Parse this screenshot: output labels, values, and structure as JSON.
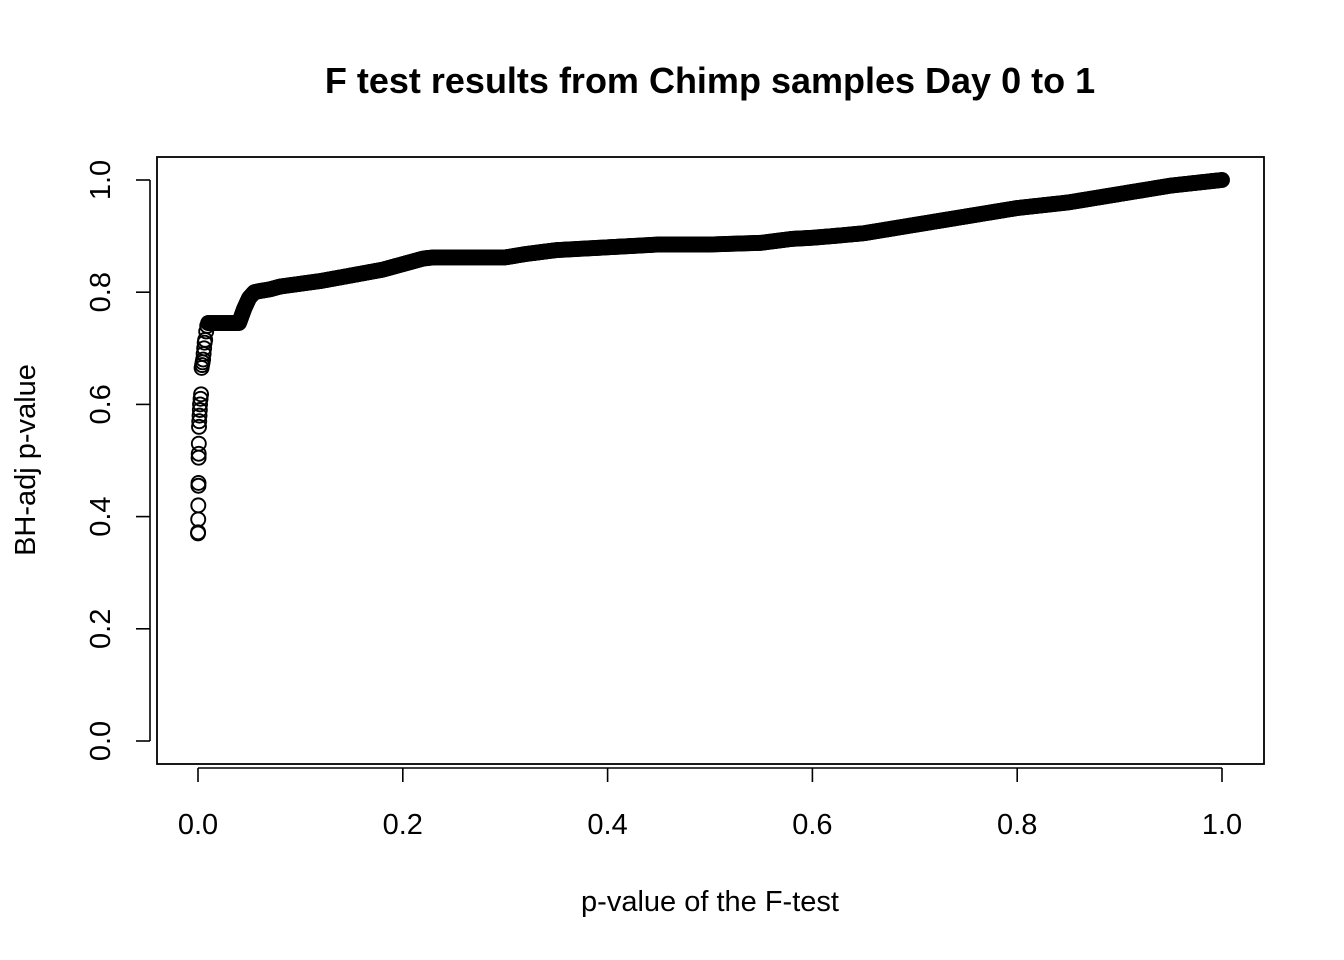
{
  "chart_data": {
    "type": "scatter",
    "title": "F test results from Chimp samples Day 0 to 1",
    "xlabel": "p-value of the F-test",
    "ylabel": "BH-adj p-value",
    "xlim": [
      0,
      1
    ],
    "ylim": [
      0,
      1
    ],
    "x_ticks": [
      "0.0",
      "0.2",
      "0.4",
      "0.6",
      "0.8",
      "1.0"
    ],
    "y_ticks": [
      "0.0",
      "0.2",
      "0.4",
      "0.6",
      "0.8",
      "1.0"
    ],
    "marker": "open-circle",
    "color": "#000000",
    "grid": false,
    "legend": "none",
    "series": [
      {
        "x": [
          0.0,
          0.0001,
          0.0002,
          0.0003,
          0.0004,
          0.0005,
          0.0006,
          0.0007,
          0.0008,
          0.001,
          0.0012,
          0.0015,
          0.0018,
          0.002,
          0.0025,
          0.003,
          0.0035,
          0.004,
          0.0045,
          0.005,
          0.0055,
          0.006,
          0.0065,
          0.007,
          0.008,
          0.009,
          0.01
        ],
        "y": [
          0.37,
          0.372,
          0.395,
          0.42,
          0.455,
          0.46,
          0.505,
          0.512,
          0.53,
          0.56,
          0.57,
          0.58,
          0.59,
          0.6,
          0.61,
          0.618,
          0.665,
          0.67,
          0.675,
          0.68,
          0.69,
          0.7,
          0.71,
          0.715,
          0.73,
          0.74,
          0.745
        ]
      },
      {
        "x": [
          0.01,
          0.04,
          0.045,
          0.05,
          0.055,
          0.06,
          0.07,
          0.08,
          0.1,
          0.12,
          0.15,
          0.18,
          0.2,
          0.21,
          0.22,
          0.23,
          0.25,
          0.3,
          0.32,
          0.35,
          0.38,
          0.4,
          0.42,
          0.45,
          0.5,
          0.55,
          0.58,
          0.6,
          0.62,
          0.65,
          0.7,
          0.75,
          0.8,
          0.85,
          0.9,
          0.95,
          1.0
        ],
        "y": [
          0.745,
          0.745,
          0.77,
          0.79,
          0.8,
          0.802,
          0.805,
          0.81,
          0.815,
          0.82,
          0.83,
          0.84,
          0.85,
          0.855,
          0.86,
          0.862,
          0.862,
          0.862,
          0.868,
          0.875,
          0.878,
          0.88,
          0.882,
          0.885,
          0.885,
          0.888,
          0.895,
          0.897,
          0.9,
          0.905,
          0.92,
          0.935,
          0.95,
          0.96,
          0.975,
          0.99,
          1.0
        ]
      }
    ]
  }
}
